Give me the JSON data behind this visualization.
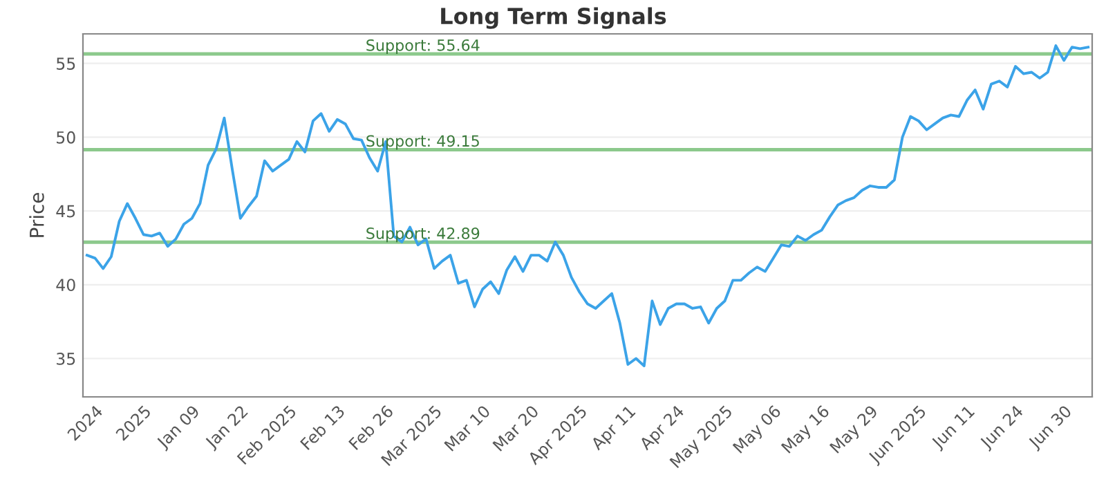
{
  "chart_data": {
    "type": "line",
    "title": "Long Term Signals",
    "ylabel": "Price",
    "categories": [
      null,
      "2024",
      null,
      null,
      null,
      null,
      null,
      "2025",
      null,
      null,
      null,
      null,
      null,
      "Jan 09",
      null,
      null,
      null,
      null,
      null,
      "Jan 22",
      null,
      null,
      null,
      null,
      null,
      "Feb 2025",
      null,
      null,
      null,
      null,
      null,
      "Feb 13",
      null,
      null,
      null,
      null,
      null,
      "Feb 26",
      null,
      null,
      null,
      null,
      null,
      "Mar 2025",
      null,
      null,
      null,
      null,
      null,
      "Mar 10",
      null,
      null,
      null,
      null,
      null,
      "Mar 20",
      null,
      null,
      null,
      null,
      null,
      "Apr 2025",
      null,
      null,
      null,
      null,
      null,
      "Apr 11",
      null,
      null,
      null,
      null,
      null,
      "Apr 24",
      null,
      null,
      null,
      null,
      null,
      "May 2025",
      null,
      null,
      null,
      null,
      null,
      "May 06",
      null,
      null,
      null,
      null,
      null,
      "May 16",
      null,
      null,
      null,
      null,
      null,
      "May 29",
      null,
      null,
      null,
      null,
      null,
      "Jun 2025",
      null,
      null,
      null,
      null,
      null,
      "Jun 11",
      null,
      null,
      null,
      null,
      null,
      "Jun 24",
      null,
      null,
      null,
      null,
      null,
      "Jun 30",
      null,
      null,
      null
    ],
    "series": [
      {
        "color": "#3ba3e8",
        "values": [
          42.0,
          41.8,
          41.1,
          41.9,
          44.3,
          45.5,
          44.5,
          43.4,
          43.3,
          43.5,
          42.6,
          43.1,
          44.1,
          44.5,
          45.5,
          48.1,
          49.2,
          51.3,
          47.8,
          44.5,
          45.3,
          46.0,
          48.4,
          47.7,
          48.1,
          48.5,
          49.7,
          49.0,
          51.1,
          51.6,
          50.4,
          51.2,
          50.9,
          49.9,
          49.8,
          48.6,
          47.7,
          49.7,
          43.3,
          42.9,
          43.9,
          42.7,
          43.1,
          41.1,
          41.6,
          42.0,
          40.1,
          40.3,
          38.5,
          39.7,
          40.2,
          39.4,
          41.0,
          41.9,
          40.9,
          42.0,
          42.0,
          41.6,
          42.9,
          42.0,
          40.5,
          39.5,
          38.7,
          38.4,
          38.9,
          39.4,
          37.4,
          34.6,
          35.0,
          34.5,
          38.9,
          37.3,
          38.4,
          38.7,
          38.7,
          38.4,
          38.5,
          37.4,
          38.4,
          38.9,
          40.3,
          40.3,
          40.8,
          41.2,
          40.9,
          41.8,
          42.7,
          42.6,
          43.3,
          43.0,
          43.4,
          43.7,
          44.6,
          45.4,
          45.7,
          45.9,
          46.4,
          46.7,
          46.6,
          46.6,
          47.1,
          50.0,
          51.4,
          51.1,
          50.5,
          50.9,
          51.3,
          51.5,
          51.4,
          52.5,
          53.2,
          51.9,
          53.6,
          53.8,
          53.4,
          54.8,
          54.3,
          54.4,
          54.0,
          54.4,
          56.2,
          55.2,
          56.1,
          56.0,
          56.1
        ]
      }
    ],
    "ylim": [
      32.4,
      57.0
    ],
    "yticks": [
      35,
      40,
      45,
      50,
      55
    ],
    "grid": "y",
    "marker": "none",
    "line_style": "solid",
    "ref_lines": [
      {
        "axis": "y",
        "value": 55.64,
        "label": "Support: 55.64",
        "color": "#8cc98c"
      },
      {
        "axis": "y",
        "value": 49.15,
        "label": "Support: 49.15",
        "color": "#8cc98c"
      },
      {
        "axis": "y",
        "value": 42.89,
        "label": "Support: 42.89",
        "color": "#8cc98c"
      }
    ]
  }
}
